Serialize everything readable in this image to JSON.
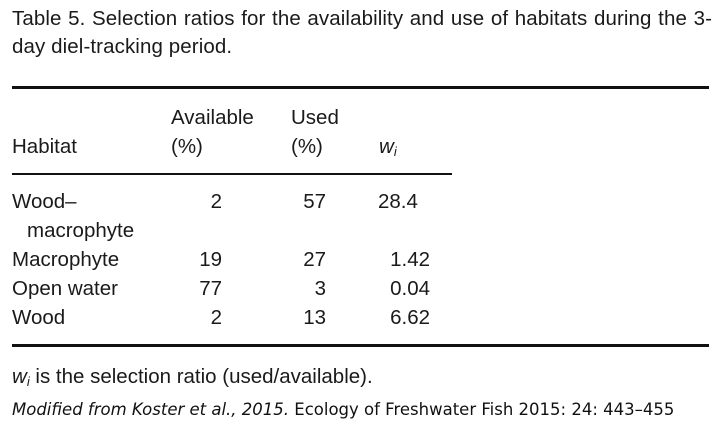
{
  "caption": "Table 5. Selection ratios for the availability and use of habitats during the 3-day diel-tracking period.",
  "table": {
    "headers": {
      "habitat": "Habitat",
      "available_line1": "Available",
      "available_line2": "(%)",
      "used_line1": "Used",
      "used_line2": "(%)",
      "w_symbol": "w",
      "w_subscript": "i"
    },
    "rows": [
      {
        "habitat_line1": "Wood–",
        "habitat_line2": "macrophyte",
        "available": "2",
        "used": "57",
        "wi": "28.4"
      },
      {
        "habitat": "Macrophyte",
        "available": "19",
        "used": "27",
        "wi": "1.42"
      },
      {
        "habitat": "Open water",
        "available": "77",
        "used": "3",
        "wi": "0.04"
      },
      {
        "habitat": "Wood",
        "available": "2",
        "used": "13",
        "wi": "6.62"
      }
    ]
  },
  "footnote": {
    "symbol": "w",
    "subscript": "i",
    "text": " is the selection ratio (used/available)."
  },
  "source": {
    "italic_part": "Modified from Koster et al., 2015.",
    "rest": " Ecology of Freshwater Fish 2015: 24: 443–455"
  }
}
